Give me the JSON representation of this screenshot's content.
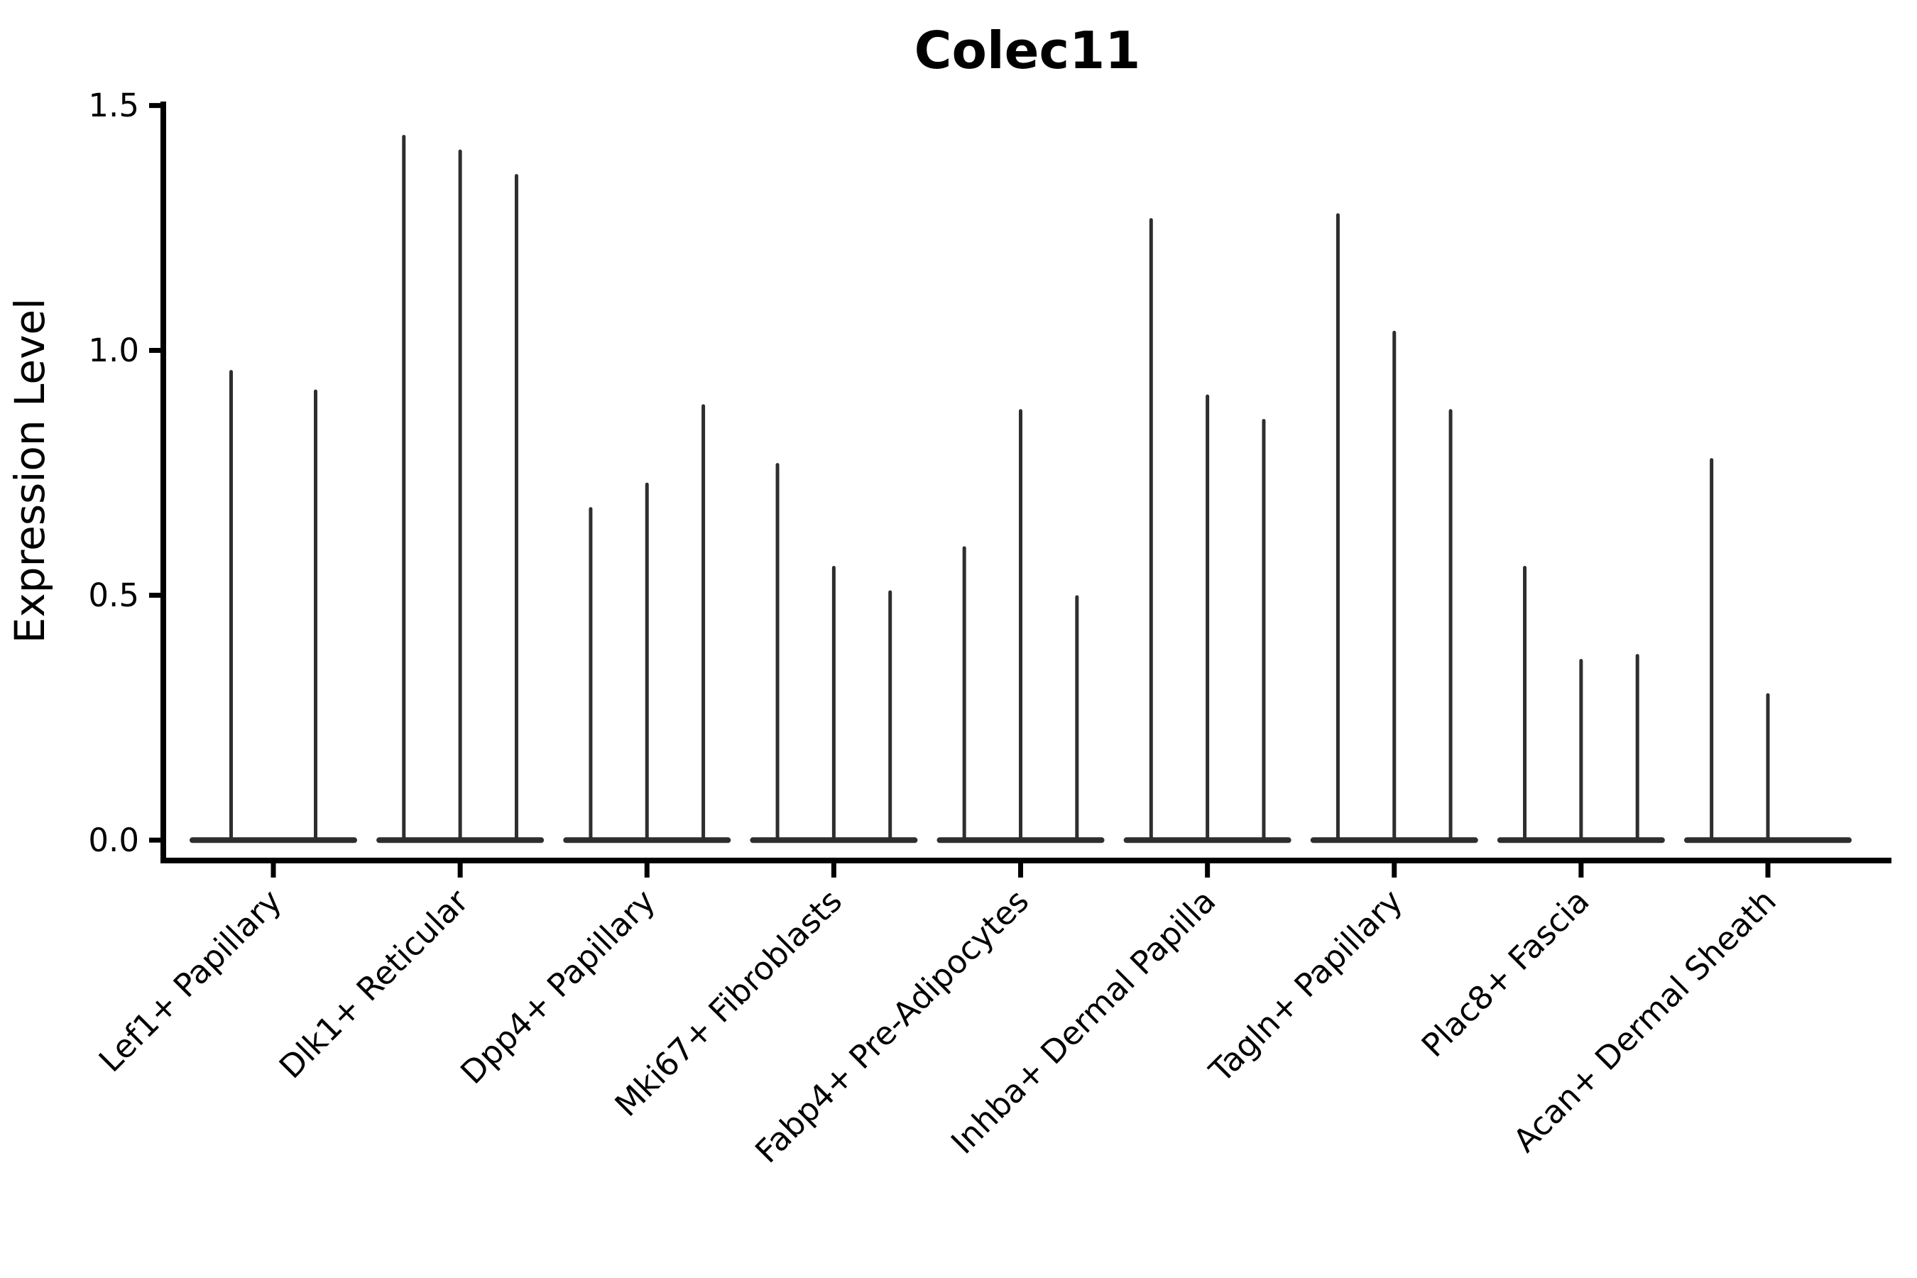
{
  "figure": {
    "background": "#ffffff"
  },
  "chart_data": {
    "type": "violin",
    "title": "Colec11",
    "ylabel": "Expression Level",
    "xlabel": "",
    "grid": false,
    "legend": null,
    "ylim": [
      -0.04,
      1.51
    ],
    "yticks": [
      {
        "label": "0.0",
        "value": 0.0
      },
      {
        "label": "0.5",
        "value": 0.5
      },
      {
        "label": "1.0",
        "value": 1.0
      },
      {
        "label": "1.5",
        "value": 1.5
      }
    ],
    "categories": [
      "Lef1+ Papillary",
      "Dlk1+ Reticular",
      "Dpp4+ Papillary",
      "Mki67+ Fibroblasts",
      "Fabp4+ Pre-Adipocytes",
      "Inhba+ Dermal Papilla",
      "Tagln+ Papillary",
      "Plac8+ Fascia",
      "Acan+ Dermal Sheath"
    ],
    "violin_peak_values": [
      [
        0.96,
        0.92
      ],
      [
        1.44,
        1.41,
        1.36
      ],
      [
        0.68,
        0.73,
        0.89
      ],
      [
        0.77,
        0.56,
        0.51
      ],
      [
        0.6,
        0.88,
        0.5
      ],
      [
        1.27,
        0.91,
        0.86
      ],
      [
        1.28,
        1.04,
        0.88
      ],
      [
        0.56,
        0.37,
        0.38
      ],
      [
        0.78,
        0.3,
        0.0
      ]
    ],
    "colors": {
      "violin": "#2e2e2e",
      "axis": "#000000",
      "text": "#000000",
      "background": "#ffffff"
    }
  }
}
